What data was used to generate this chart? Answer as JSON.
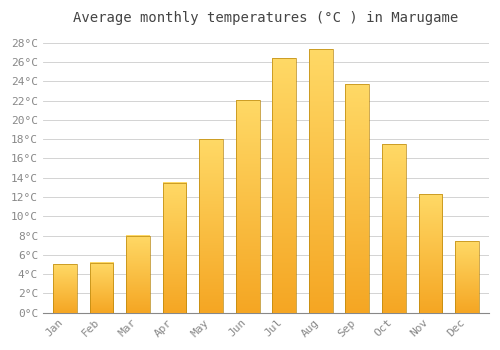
{
  "title": "Average monthly temperatures (°C ) in Marugame",
  "months": [
    "Jan",
    "Feb",
    "Mar",
    "Apr",
    "May",
    "Jun",
    "Jul",
    "Aug",
    "Sep",
    "Oct",
    "Nov",
    "Dec"
  ],
  "temperatures": [
    5.0,
    5.2,
    8.0,
    13.5,
    18.0,
    22.1,
    26.4,
    27.4,
    23.7,
    17.5,
    12.3,
    7.4
  ],
  "bar_color_bottom": "#F5A623",
  "bar_color_top": "#FFD966",
  "bar_outline_color": "#B8860B",
  "ylim": [
    0,
    29
  ],
  "yticks": [
    0,
    2,
    4,
    6,
    8,
    10,
    12,
    14,
    16,
    18,
    20,
    22,
    24,
    26,
    28
  ],
  "background_color": "#ffffff",
  "grid_color": "#cccccc",
  "title_fontsize": 10,
  "tick_fontsize": 8,
  "tick_color": "#888888",
  "font_family": "monospace"
}
